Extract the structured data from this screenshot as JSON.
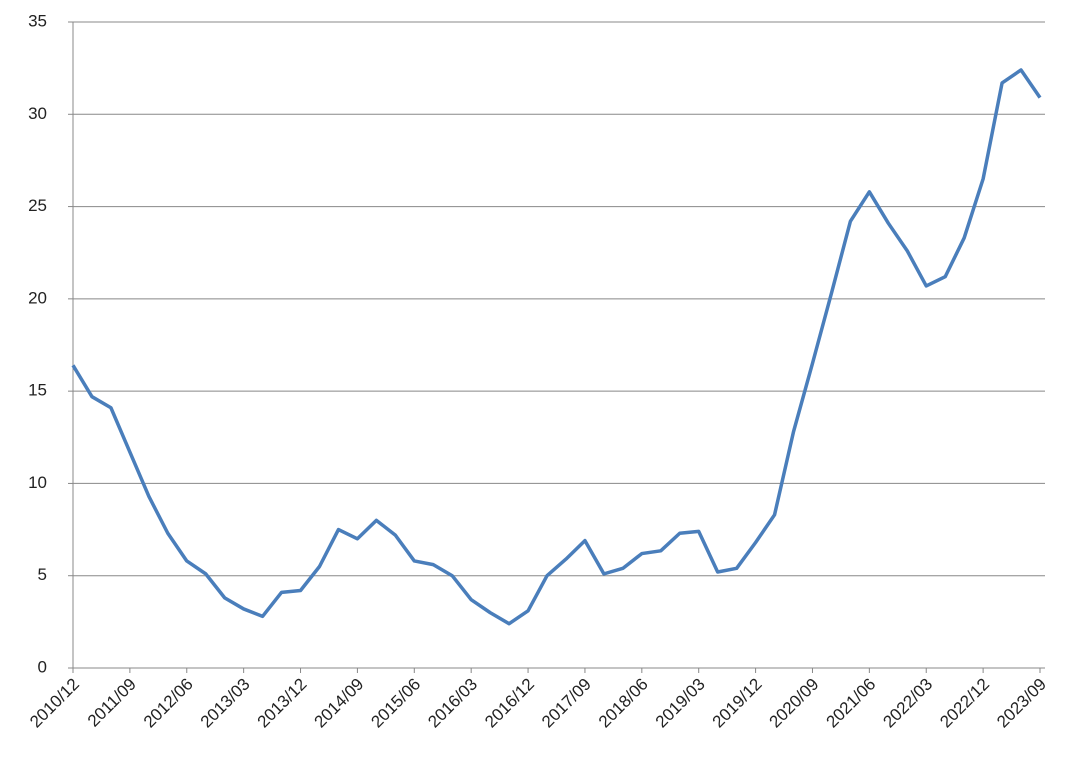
{
  "chart_data": {
    "type": "line",
    "categories": [
      "2010/12",
      null,
      null,
      "2011/09",
      null,
      null,
      "2012/06",
      null,
      null,
      "2013/03",
      null,
      null,
      "2013/12",
      null,
      null,
      "2014/09",
      null,
      null,
      "2015/06",
      null,
      null,
      "2016/03",
      null,
      null,
      "2016/12",
      null,
      null,
      "2017/09",
      null,
      null,
      "2018/06",
      null,
      null,
      "2019/03",
      null,
      null,
      "2019/12",
      null,
      null,
      "2020/09",
      null,
      null,
      "2021/06",
      null,
      null,
      "2022/03",
      null,
      null,
      "2022/12",
      null,
      null,
      "2023/09"
    ],
    "values": [
      16.4,
      14.7,
      14.1,
      11.7,
      9.3,
      7.3,
      5.8,
      5.1,
      3.8,
      3.2,
      2.8,
      4.1,
      4.2,
      5.5,
      7.5,
      7.0,
      8.0,
      7.2,
      5.8,
      5.6,
      5.0,
      3.7,
      3.0,
      2.4,
      3.1,
      5.0,
      5.9,
      6.9,
      5.1,
      5.4,
      6.2,
      6.35,
      7.3,
      7.4,
      5.2,
      5.4,
      6.8,
      8.3,
      12.8,
      16.5,
      20.3,
      24.2,
      25.8,
      24.1,
      22.6,
      20.7,
      21.2,
      23.3,
      26.5,
      31.7,
      32.4,
      30.9
    ],
    "color": "#4a7ebb",
    "ylim": [
      0,
      35
    ],
    "yticks": [
      0,
      5,
      10,
      15,
      20,
      25,
      30,
      35
    ],
    "grid": true
  }
}
